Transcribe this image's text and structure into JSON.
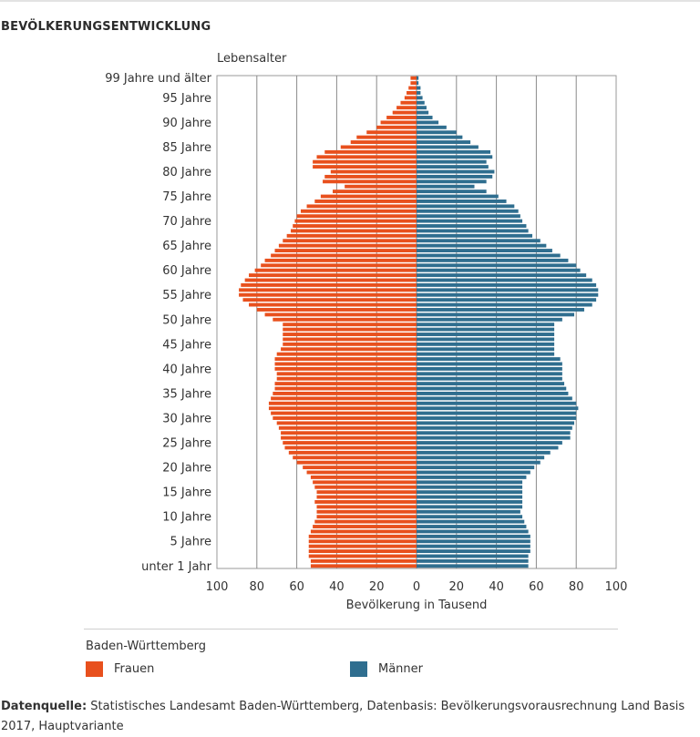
{
  "page_title": "BEVÖLKERUNGSENTWICKLUNG",
  "chart_data": {
    "type": "bar",
    "orientation": "horizontal-population-pyramid",
    "title": "",
    "ylabel": "Lebensalter",
    "xlabel": "Bevölkerung in Tausend",
    "xlim": [
      -100,
      100
    ],
    "x_ticks": [
      "100",
      "80",
      "60",
      "40",
      "20",
      "0",
      "20",
      "40",
      "60",
      "80",
      "100"
    ],
    "y_tick_labels": {
      "0": "unter 1 Jahr",
      "5": "5 Jahre",
      "10": "10 Jahre",
      "15": "15 Jahre",
      "20": "20 Jahre",
      "25": "25 Jahre",
      "30": "30 Jahre",
      "35": "35 Jahre",
      "40": "40 Jahre",
      "45": "45 Jahre",
      "50": "50 Jahre",
      "55": "55 Jahre",
      "60": "60 Jahre",
      "65": "65 Jahre",
      "70": "70 Jahre",
      "75": "75 Jahre",
      "80": "80 Jahre",
      "85": "85 Jahre",
      "90": "90 Jahre",
      "95": "95 Jahre",
      "99": "99 Jahre und älter"
    },
    "grid": "vertical",
    "ages": [
      0,
      1,
      2,
      3,
      4,
      5,
      6,
      7,
      8,
      9,
      10,
      11,
      12,
      13,
      14,
      15,
      16,
      17,
      18,
      19,
      20,
      21,
      22,
      23,
      24,
      25,
      26,
      27,
      28,
      29,
      30,
      31,
      32,
      33,
      34,
      35,
      36,
      37,
      38,
      39,
      40,
      41,
      42,
      43,
      44,
      45,
      46,
      47,
      48,
      49,
      50,
      51,
      52,
      53,
      54,
      55,
      56,
      57,
      58,
      59,
      60,
      61,
      62,
      63,
      64,
      65,
      66,
      67,
      68,
      69,
      70,
      71,
      72,
      73,
      74,
      75,
      76,
      77,
      78,
      79,
      80,
      81,
      82,
      83,
      84,
      85,
      86,
      87,
      88,
      89,
      90,
      91,
      92,
      93,
      94,
      95,
      96,
      97,
      98,
      99
    ],
    "series": [
      {
        "name": "Frauen",
        "color": "#e8501d",
        "values": [
          53,
          53,
          54,
          54,
          54,
          54,
          54,
          53,
          52,
          51,
          50,
          50,
          50,
          51,
          50,
          50,
          51,
          52,
          53,
          55,
          57,
          60,
          62,
          64,
          66,
          67,
          68,
          68,
          69,
          70,
          72,
          73,
          74,
          74,
          73,
          72,
          71,
          71,
          70,
          70,
          71,
          71,
          71,
          70,
          68,
          67,
          67,
          67,
          67,
          67,
          72,
          76,
          80,
          84,
          87,
          89,
          89,
          88,
          86,
          84,
          81,
          78,
          76,
          73,
          71,
          69,
          67,
          65,
          63,
          62,
          61,
          60,
          58,
          55,
          51,
          48,
          42,
          36,
          47,
          46,
          43,
          52,
          52,
          50,
          46,
          38,
          33,
          30,
          25,
          20,
          18,
          15,
          12,
          10,
          8,
          6,
          5,
          4,
          3,
          3
        ]
      },
      {
        "name": "Männer",
        "color": "#2f6e8f",
        "values": [
          56,
          56,
          56,
          57,
          57,
          57,
          57,
          56,
          55,
          54,
          53,
          52,
          53,
          53,
          53,
          53,
          53,
          53,
          55,
          57,
          59,
          62,
          64,
          67,
          71,
          73,
          77,
          77,
          78,
          79,
          80,
          80,
          81,
          80,
          78,
          76,
          75,
          74,
          73,
          73,
          73,
          73,
          72,
          69,
          69,
          69,
          69,
          69,
          69,
          69,
          73,
          79,
          84,
          88,
          90,
          91,
          91,
          90,
          88,
          85,
          82,
          80,
          76,
          72,
          68,
          65,
          62,
          58,
          56,
          55,
          53,
          52,
          51,
          49,
          45,
          41,
          35,
          29,
          35,
          38,
          39,
          36,
          35,
          38,
          37,
          31,
          27,
          23,
          20,
          15,
          11,
          8,
          6,
          5,
          4,
          3,
          2,
          2,
          1,
          1
        ]
      }
    ]
  },
  "legend": {
    "region": "Baden-Württemberg",
    "frauen_label": "Frauen",
    "maenner_label": "Männer"
  },
  "source": {
    "label": "Datenquelle:",
    "text": " Statistisches Landesamt Baden-Württemberg, Datenbasis: Bevölkerungsvorausrechnung Land Basis 2017, Hauptvariante"
  }
}
